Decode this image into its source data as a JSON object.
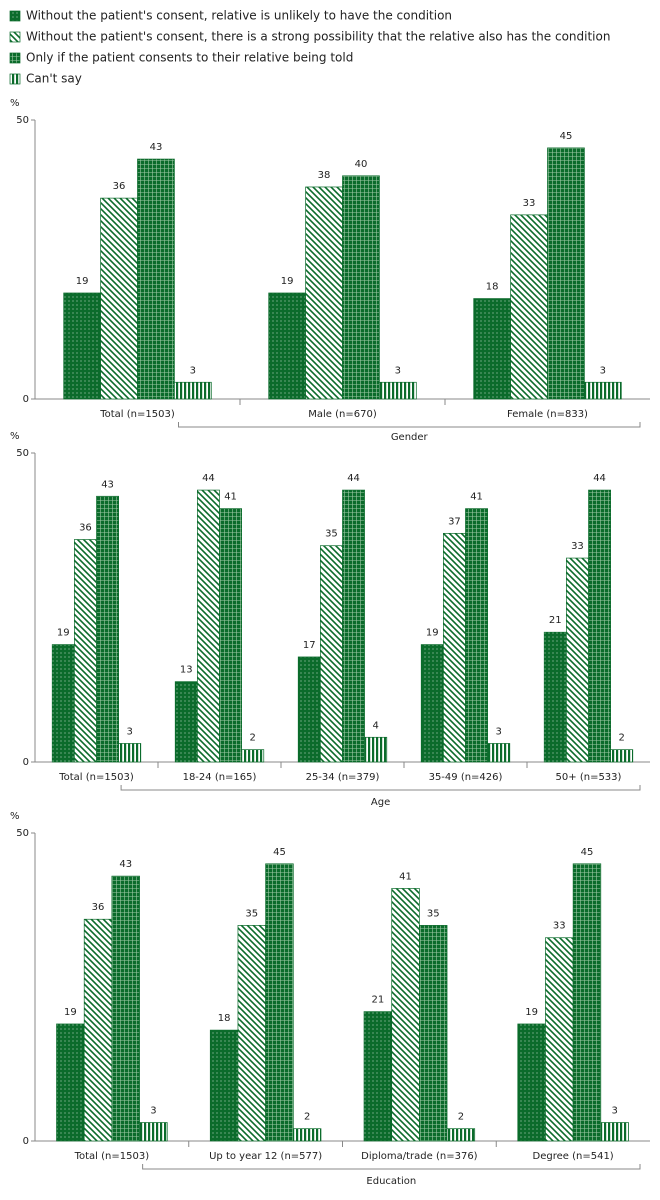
{
  "chart_data": [
    {
      "type": "bar",
      "ylabel": "%",
      "ylim": [
        0,
        50
      ],
      "yticks": [
        0,
        50
      ],
      "categories": [
        "Total (n=1503)",
        "Male    (n=670)",
        "Female (n=833)"
      ],
      "group": {
        "label": "Gender",
        "from": 1
      },
      "series": [
        {
          "name": "Without the patient's consent, relative is unlikely to have the condition",
          "color": "#0b6b2b",
          "values": [
            19,
            19,
            18
          ]
        },
        {
          "name": "Without the patient's consent, there is a strong possibility that the relative also has the condition",
          "color": "#0b6b2b",
          "values": [
            36,
            38,
            33
          ]
        },
        {
          "name": "Only if the patient consents to their relative being told",
          "color": "#0b6b2b",
          "values": [
            43,
            40,
            45
          ]
        },
        {
          "name": "Can't say",
          "color": "#0b6b2b",
          "values": [
            3,
            3,
            3
          ]
        }
      ]
    },
    {
      "type": "bar",
      "ylabel": "%",
      "ylim": [
        0,
        50
      ],
      "yticks": [
        0,
        50
      ],
      "categories": [
        "Total (n=1503)",
        "18-24 (n=165)",
        "25-34 (n=379)",
        "35-49 (n=426)",
        "50+ (n=533)"
      ],
      "group": {
        "label": "Age",
        "from": 1
      },
      "series": [
        {
          "color": "#0b6b2b",
          "values": [
            19,
            13,
            17,
            19,
            21
          ]
        },
        {
          "color": "#0b6b2b",
          "values": [
            36,
            44,
            35,
            37,
            33
          ]
        },
        {
          "color": "#0b6b2b",
          "values": [
            43,
            41,
            44,
            41,
            44
          ]
        },
        {
          "color": "#0b6b2b",
          "values": [
            3,
            2,
            4,
            3,
            2
          ]
        }
      ]
    },
    {
      "type": "bar",
      "ylabel": "%",
      "ylim": [
        0,
        50
      ],
      "yticks": [
        0,
        50
      ],
      "categories": [
        "Total (n=1503)",
        "Up to year 12 (n=577)",
        "Diploma/trade (n=376)",
        "Degree (n=541)"
      ],
      "group": {
        "label": "Education",
        "from": 1
      },
      "series": [
        {
          "color": "#0b6b2b",
          "values": [
            19,
            18,
            21,
            19
          ]
        },
        {
          "color": "#0b6b2b",
          "values": [
            36,
            35,
            41,
            33
          ]
        },
        {
          "color": "#0b6b2b",
          "values": [
            43,
            45,
            35,
            45
          ]
        },
        {
          "color": "#0b6b2b",
          "values": [
            3,
            2,
            2,
            3
          ]
        }
      ]
    }
  ]
}
